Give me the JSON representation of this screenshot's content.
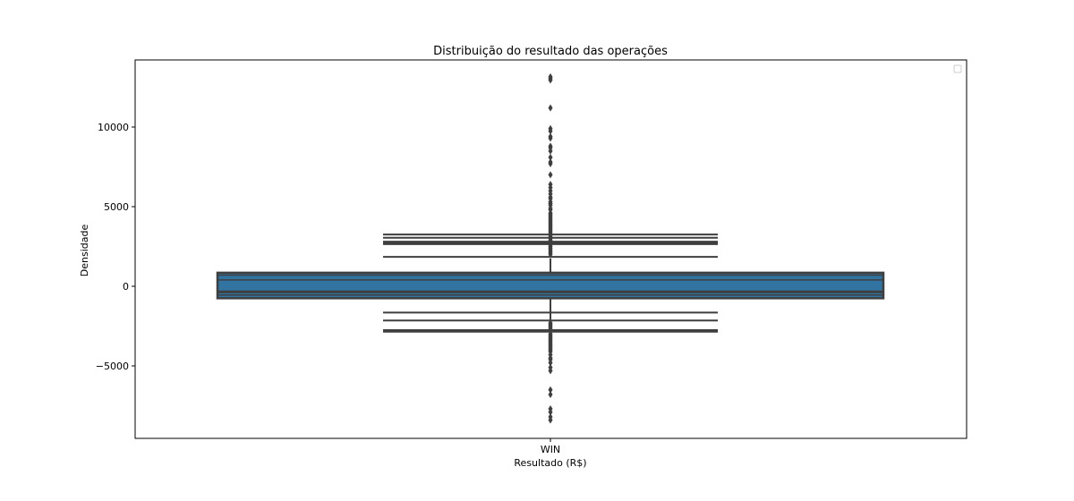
{
  "chart_data": {
    "type": "boxplot",
    "title": "Distribuição do resultado das operações",
    "xlabel": "Resultado (R$)",
    "ylabel": "Densidade",
    "categories": [
      "WIN"
    ],
    "yticks": [
      {
        "value": -5000,
        "label": "−5000"
      },
      {
        "value": 0,
        "label": "0"
      },
      {
        "value": 5000,
        "label": "5000"
      },
      {
        "value": 10000,
        "label": "10000"
      }
    ],
    "ylim": [
      -9500,
      14000
    ],
    "legend": "top-right, empty",
    "grid": false,
    "box_color": "#3274a1",
    "line_color": "#3f3f3f",
    "box": {
      "q1": -750,
      "q3": 850,
      "median": -350,
      "inner_levels": [
        -550,
        -350,
        400,
        700
      ],
      "whisker_low": -2950,
      "whisker_high": 1750
    },
    "letter_value_lines": [
      3250,
      3050,
      2800,
      2700,
      2650,
      1850,
      -1650,
      -2150,
      -2750,
      -2850
    ],
    "outliers": [
      13150,
      13050,
      12950,
      11200,
      9900,
      9750,
      9400,
      9300,
      8800,
      8700,
      8500,
      8100,
      7800,
      7700,
      7000,
      6400,
      6200,
      6000,
      5800,
      5600,
      5500,
      5300,
      5200,
      5100,
      4900,
      4800,
      4600,
      4500,
      4400,
      4300,
      4200,
      4100,
      4000,
      3900,
      3800,
      3700,
      3600,
      3500,
      3400,
      3300,
      3200,
      3100,
      3000,
      2900,
      2800,
      2700,
      2600,
      2500,
      2400,
      2300,
      2200,
      2100,
      2000,
      -2300,
      -2400,
      -2500,
      -2600,
      -2700,
      -3000,
      -3100,
      -3200,
      -3300,
      -3400,
      -3500,
      -3600,
      -3700,
      -3800,
      -3900,
      -4000,
      -4100,
      -4300,
      -4500,
      -4600,
      -4800,
      -5100,
      -5300,
      -6500,
      -6800,
      -7700,
      -7900,
      -8200,
      -8400
    ]
  }
}
